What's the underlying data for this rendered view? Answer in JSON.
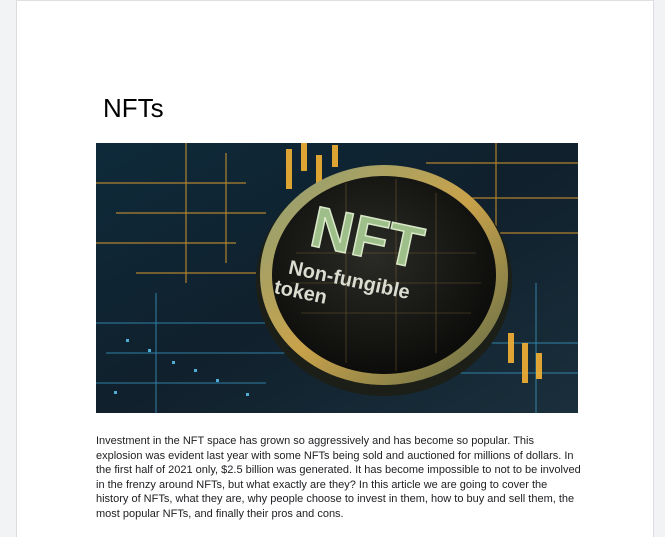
{
  "document": {
    "title": "NFTs",
    "hero_image": {
      "icon": "nft-coin-image",
      "coin_text": "NFT",
      "coin_subtext_line1": "Non-fungible",
      "coin_subtext_line2": "token"
    },
    "paragraph": "Investment in the NFT space has grown so aggressively and has become so popular. This explosion was evident last year with some NFTs being sold and auctioned for millions of dollars. In the first half of 2021 only, $2.5 billion was generated. It has become impossible to not to be involved in the frenzy around NFTs, but what exactly are they? In this article we are going to cover the history of NFTs, what they are, why people choose to invest in them, how to buy and sell them, the most popular NFTs, and finally their pros and cons."
  },
  "colors": {
    "page": "#ffffff",
    "background": "#f1f3f4",
    "coin_gold": "#c9a24a",
    "coin_green": "#9fbf8a"
  }
}
